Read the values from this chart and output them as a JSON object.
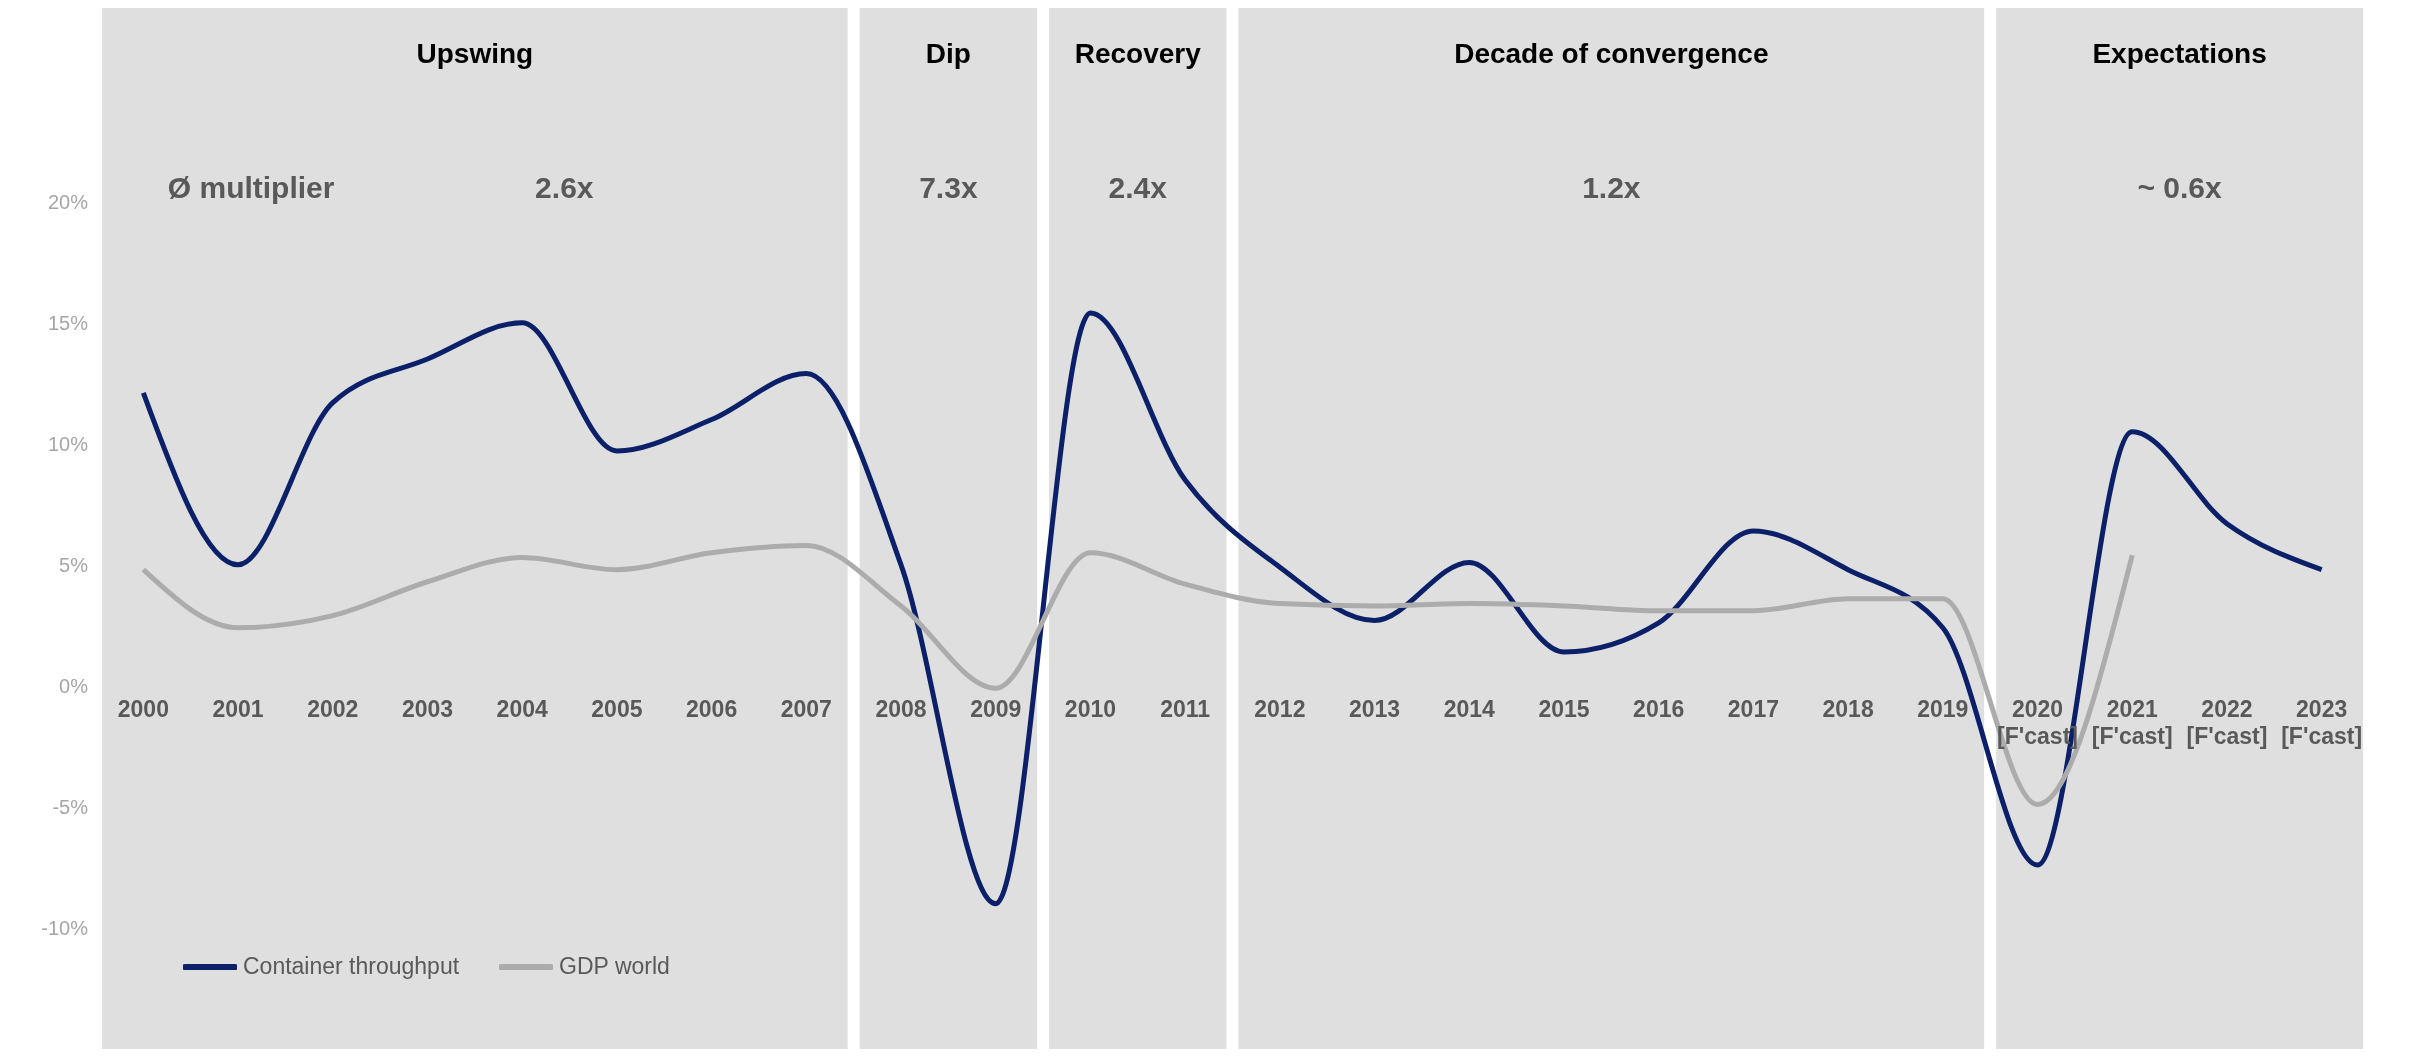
{
  "chart_data": {
    "type": "line",
    "categories": [
      "2000",
      "2001",
      "2002",
      "2003",
      "2004",
      "2005",
      "2006",
      "2007",
      "2008",
      "2009",
      "2010",
      "2011",
      "2012",
      "2013",
      "2014",
      "2015",
      "2016",
      "2017",
      "2018",
      "2019",
      "2020\n[F'cast]",
      "2021\n[F'cast]",
      "2022\n[F'cast]",
      "2023\n[F'cast]"
    ],
    "series": [
      {
        "name": "Container throughput",
        "color": "#0b2068",
        "values": [
          12.1,
          5.0,
          11.7,
          13.5,
          15.0,
          9.7,
          11.0,
          12.9,
          5.0,
          -9.0,
          15.4,
          8.5,
          4.9,
          2.7,
          5.1,
          1.4,
          2.6,
          6.4,
          4.8,
          2.4,
          -7.4,
          10.5,
          6.7,
          4.8
        ]
      },
      {
        "name": "GDP world",
        "color": "#acacac",
        "values": [
          4.8,
          2.4,
          2.9,
          4.3,
          5.3,
          4.8,
          5.5,
          5.8,
          3.3,
          -0.1,
          5.5,
          4.2,
          3.4,
          3.3,
          3.4,
          3.3,
          3.1,
          3.1,
          3.6,
          3.6,
          -4.9,
          5.4,
          null,
          null
        ]
      }
    ],
    "ylim": [
      -15,
      28
    ],
    "yticks": [
      {
        "value": -10,
        "label": "-10%"
      },
      {
        "value": -5,
        "label": "-5%"
      },
      {
        "value": 0,
        "label": "0%"
      },
      {
        "value": 5,
        "label": "5%"
      },
      {
        "value": 10,
        "label": "10%"
      },
      {
        "value": 15,
        "label": "15%"
      },
      {
        "value": 20,
        "label": "20%"
      }
    ],
    "bands": [
      {
        "axis": "x",
        "from": "2000",
        "to": "2007",
        "label": "Upswing",
        "color": "#dfdfdf"
      },
      {
        "axis": "x",
        "from": "2008",
        "to": "2009",
        "label": "Dip",
        "color": "#dfdfdf"
      },
      {
        "axis": "x",
        "from": "2010",
        "to": "2011",
        "label": "Recovery",
        "color": "#dfdfdf"
      },
      {
        "axis": "x",
        "from": "2012",
        "to": "2019",
        "label": "Decade of convergence",
        "color": "#dfdfdf"
      },
      {
        "axis": "x",
        "from": "2020\n[F'cast]",
        "to": "2023\n[F'cast]",
        "label": "Expectations",
        "color": "#dfdfdf"
      }
    ],
    "annotations": [
      "Ø multiplier",
      "2.6x",
      "7.3x",
      "2.4x",
      "1.2x",
      "~ 0.6x"
    ],
    "legend": "bottom left",
    "grid": false,
    "line_style": "solid",
    "marker": "none"
  }
}
